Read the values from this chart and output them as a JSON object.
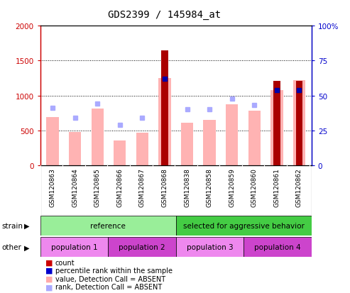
{
  "title": "GDS2399 / 145984_at",
  "samples": [
    "GSM120863",
    "GSM120864",
    "GSM120865",
    "GSM120866",
    "GSM120867",
    "GSM120868",
    "GSM120838",
    "GSM120858",
    "GSM120859",
    "GSM120860",
    "GSM120861",
    "GSM120862"
  ],
  "count_values": [
    null,
    null,
    null,
    null,
    null,
    1650,
    null,
    null,
    null,
    null,
    1210,
    1210
  ],
  "pink_bar_values": [
    690,
    480,
    810,
    360,
    470,
    1250,
    610,
    650,
    870,
    780,
    1080,
    1220
  ],
  "blue_sq_values": [
    41,
    34,
    44,
    29,
    34,
    62,
    40,
    40,
    48,
    43,
    54,
    54
  ],
  "count_present": [
    false,
    false,
    false,
    false,
    false,
    true,
    false,
    false,
    false,
    false,
    true,
    true
  ],
  "ylim_left": [
    0,
    2000
  ],
  "ylim_right": [
    0,
    100
  ],
  "yticks_left": [
    0,
    500,
    1000,
    1500,
    2000
  ],
  "yticks_right": [
    0,
    25,
    50,
    75,
    100
  ],
  "ytick_labels_left": [
    "0",
    "500",
    "1000",
    "1500",
    "2000"
  ],
  "ytick_labels_right": [
    "0",
    "25",
    "50",
    "75",
    "100%"
  ],
  "left_axis_color": "#cc0000",
  "right_axis_color": "#0000cc",
  "strain_groups": [
    {
      "label": "reference",
      "start": 0,
      "end": 6,
      "color": "#99ee99"
    },
    {
      "label": "selected for aggressive behavior",
      "start": 6,
      "end": 12,
      "color": "#44cc44"
    }
  ],
  "other_groups": [
    {
      "label": "population 1",
      "start": 0,
      "end": 3,
      "color": "#ee88ee"
    },
    {
      "label": "population 2",
      "start": 3,
      "end": 6,
      "color": "#cc44cc"
    },
    {
      "label": "population 3",
      "start": 6,
      "end": 9,
      "color": "#ee88ee"
    },
    {
      "label": "population 4",
      "start": 9,
      "end": 12,
      "color": "#cc44cc"
    }
  ],
  "legend_items": [
    {
      "label": "count",
      "color": "#cc0000"
    },
    {
      "label": "percentile rank within the sample",
      "color": "#0000cc"
    },
    {
      "label": "value, Detection Call = ABSENT",
      "color": "#ffaaaa"
    },
    {
      "label": "rank, Detection Call = ABSENT",
      "color": "#aaaaff"
    }
  ],
  "pink_bar_color": "#ffb3b3",
  "blue_sq_color": "#aaaaff",
  "count_bar_color": "#aa0000",
  "count_rank_color": "#0000aa",
  "xtick_bg_color": "#cccccc",
  "bg_color": "#ffffff"
}
